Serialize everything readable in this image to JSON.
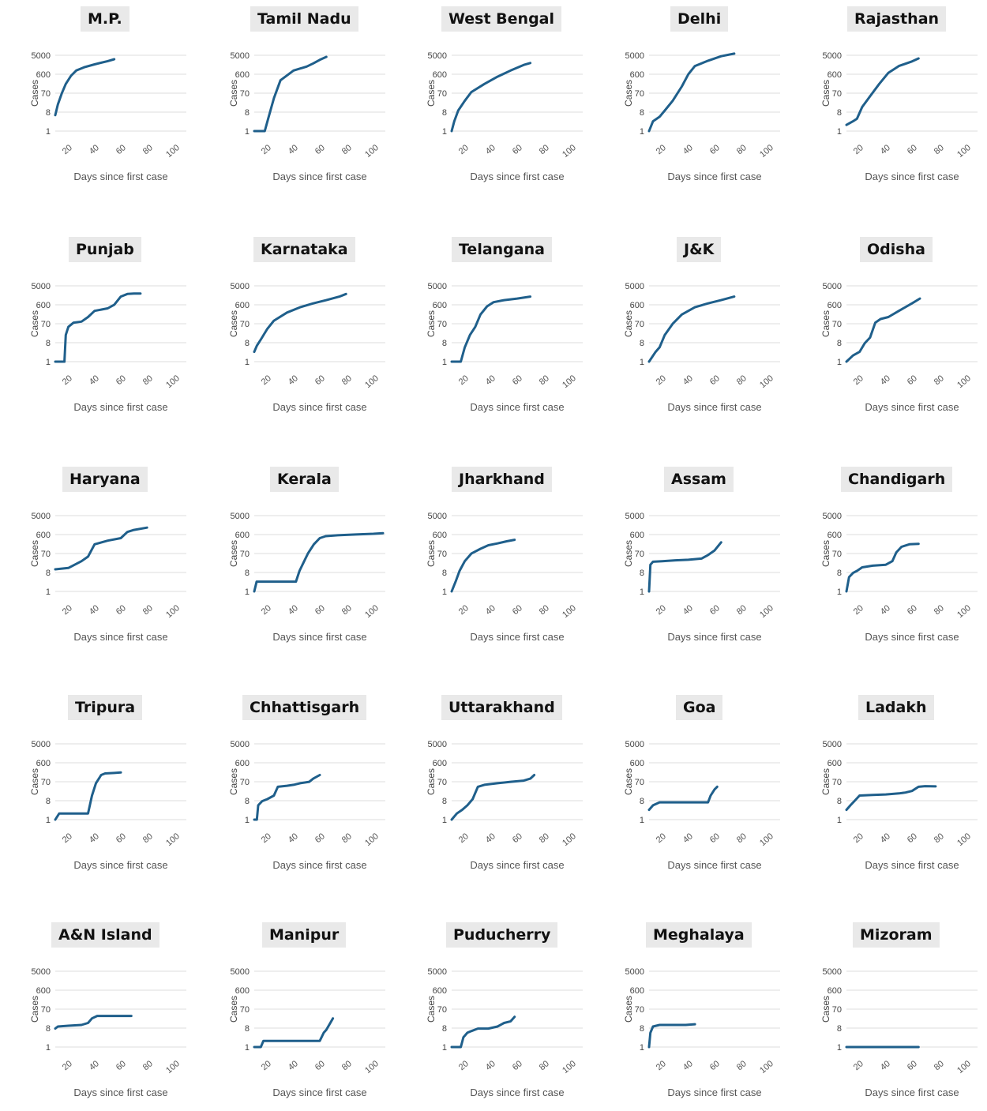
{
  "chart_data": [
    {
      "type": "line",
      "title": "M.P.",
      "xlabel": "Days since first case",
      "ylabel": "Cases",
      "yticks": [
        "1",
        "8",
        "70",
        "600",
        "5000"
      ],
      "xticks": [
        "20",
        "40",
        "60",
        "80",
        "100"
      ],
      "ylim": [
        1,
        5000
      ],
      "xlim": [
        0,
        100
      ],
      "y_scale": "log",
      "x": [
        0,
        2,
        5,
        8,
        12,
        16,
        22,
        30,
        40,
        45
      ],
      "y": [
        6,
        20,
        70,
        200,
        500,
        900,
        1300,
        1800,
        2600,
        3200
      ]
    },
    {
      "type": "line",
      "title": "Tamil Nadu",
      "xlabel": "Days since first case",
      "ylabel": "Cases",
      "yticks": [
        "1",
        "8",
        "70",
        "600",
        "5000"
      ],
      "xticks": [
        "20",
        "40",
        "60",
        "80",
        "100"
      ],
      "ylim": [
        1,
        5000
      ],
      "xlim": [
        0,
        100
      ],
      "y_scale": "log",
      "x": [
        0,
        5,
        8,
        11,
        15,
        20,
        30,
        40,
        45,
        50,
        55
      ],
      "y": [
        1,
        1,
        1,
        5,
        40,
        300,
        900,
        1400,
        2000,
        3000,
        4200
      ]
    },
    {
      "type": "line",
      "title": "West Bengal",
      "xlabel": "Days since first case",
      "ylabel": "Cases",
      "yticks": [
        "1",
        "8",
        "70",
        "600",
        "5000"
      ],
      "xticks": [
        "20",
        "40",
        "60",
        "80",
        "100"
      ],
      "ylim": [
        1,
        5000
      ],
      "xlim": [
        0,
        100
      ],
      "y_scale": "log",
      "x": [
        0,
        2,
        5,
        10,
        15,
        25,
        35,
        45,
        55,
        60
      ],
      "y": [
        1,
        3,
        10,
        30,
        80,
        200,
        450,
        900,
        1700,
        2100
      ]
    },
    {
      "type": "line",
      "title": "Delhi",
      "xlabel": "Days since first case",
      "ylabel": "Cases",
      "yticks": [
        "1",
        "8",
        "70",
        "600",
        "5000"
      ],
      "xticks": [
        "20",
        "40",
        "60",
        "80",
        "100"
      ],
      "ylim": [
        1,
        5000
      ],
      "xlim": [
        0,
        100
      ],
      "y_scale": "log",
      "x": [
        0,
        3,
        8,
        12,
        18,
        25,
        30,
        35,
        45,
        55,
        65
      ],
      "y": [
        1,
        3,
        5,
        10,
        30,
        150,
        600,
        1500,
        2700,
        4500,
        6000
      ]
    },
    {
      "type": "line",
      "title": "Rajasthan",
      "xlabel": "Days since first case",
      "ylabel": "Cases",
      "yticks": [
        "1",
        "8",
        "70",
        "600",
        "5000"
      ],
      "xticks": [
        "20",
        "40",
        "60",
        "80",
        "100"
      ],
      "ylim": [
        1,
        5000
      ],
      "xlim": [
        0,
        100
      ],
      "y_scale": "log",
      "x": [
        0,
        5,
        8,
        12,
        18,
        25,
        32,
        40,
        50,
        55
      ],
      "y": [
        2,
        3,
        4,
        15,
        50,
        200,
        700,
        1500,
        2500,
        3500
      ]
    },
    {
      "type": "line",
      "title": "Punjab",
      "xlabel": "Days since first case",
      "ylabel": "Cases",
      "yticks": [
        "1",
        "8",
        "70",
        "600",
        "5000"
      ],
      "xticks": [
        "20",
        "40",
        "60",
        "80",
        "100"
      ],
      "ylim": [
        1,
        5000
      ],
      "xlim": [
        0,
        100
      ],
      "y_scale": "log",
      "x": [
        0,
        5,
        7,
        8,
        10,
        14,
        20,
        25,
        30,
        40,
        45,
        50,
        55,
        60,
        65
      ],
      "y": [
        1,
        1,
        1,
        20,
        50,
        80,
        90,
        150,
        300,
        400,
        600,
        1500,
        2000,
        2100,
        2100
      ]
    },
    {
      "type": "line",
      "title": "Karnataka",
      "xlabel": "Days since first case",
      "ylabel": "Cases",
      "yticks": [
        "1",
        "8",
        "70",
        "600",
        "5000"
      ],
      "xticks": [
        "20",
        "40",
        "60",
        "80",
        "100"
      ],
      "ylim": [
        1,
        5000
      ],
      "xlim": [
        0,
        100
      ],
      "y_scale": "log",
      "x": [
        0,
        2,
        5,
        10,
        15,
        25,
        35,
        45,
        55,
        65,
        70
      ],
      "y": [
        3,
        6,
        12,
        40,
        100,
        250,
        450,
        700,
        1000,
        1500,
        2000
      ]
    },
    {
      "type": "line",
      "title": "Telangana",
      "xlabel": "Days since first case",
      "ylabel": "Cases",
      "yticks": [
        "1",
        "8",
        "70",
        "600",
        "5000"
      ],
      "xticks": [
        "20",
        "40",
        "60",
        "80",
        "100"
      ],
      "ylim": [
        1,
        5000
      ],
      "xlim": [
        0,
        100
      ],
      "y_scale": "log",
      "x": [
        0,
        7,
        10,
        14,
        18,
        22,
        27,
        32,
        40,
        50,
        60
      ],
      "y": [
        1,
        1,
        5,
        20,
        50,
        200,
        500,
        800,
        1000,
        1200,
        1500
      ]
    },
    {
      "type": "line",
      "title": "J&K",
      "xlabel": "Days since first case",
      "ylabel": "Cases",
      "yticks": [
        "1",
        "8",
        "70",
        "600",
        "5000"
      ],
      "xticks": [
        "20",
        "40",
        "60",
        "80",
        "100"
      ],
      "ylim": [
        1,
        5000
      ],
      "xlim": [
        0,
        100
      ],
      "y_scale": "log",
      "x": [
        0,
        5,
        8,
        12,
        18,
        25,
        35,
        45,
        55,
        65
      ],
      "y": [
        1,
        3,
        5,
        20,
        70,
        200,
        450,
        700,
        1000,
        1500
      ]
    },
    {
      "type": "line",
      "title": "Odisha",
      "xlabel": "Days since first case",
      "ylabel": "Cases",
      "yticks": [
        "1",
        "8",
        "70",
        "600",
        "5000"
      ],
      "xticks": [
        "20",
        "40",
        "60",
        "80",
        "100"
      ],
      "ylim": [
        1,
        5000
      ],
      "xlim": [
        0,
        100
      ],
      "y_scale": "log",
      "x": [
        0,
        5,
        10,
        14,
        18,
        22,
        26,
        32,
        40,
        50,
        56
      ],
      "y": [
        1,
        2,
        3,
        8,
        15,
        80,
        120,
        150,
        300,
        700,
        1200
      ]
    },
    {
      "type": "line",
      "title": "Haryana",
      "xlabel": "Days since first case",
      "ylabel": "Cases",
      "yticks": [
        "1",
        "8",
        "70",
        "600",
        "5000"
      ],
      "xticks": [
        "20",
        "40",
        "60",
        "80",
        "100"
      ],
      "ylim": [
        1,
        5000
      ],
      "xlim": [
        0,
        100
      ],
      "y_scale": "log",
      "x": [
        0,
        10,
        20,
        25,
        30,
        40,
        50,
        55,
        60,
        70
      ],
      "y": [
        12,
        14,
        30,
        50,
        200,
        300,
        400,
        800,
        1000,
        1300
      ]
    },
    {
      "type": "line",
      "title": "Kerala",
      "xlabel": "Days since first case",
      "ylabel": "Cases",
      "yticks": [
        "1",
        "8",
        "70",
        "600",
        "5000"
      ],
      "xticks": [
        "20",
        "40",
        "60",
        "80",
        "100"
      ],
      "ylim": [
        1,
        5000
      ],
      "xlim": [
        0,
        110
      ],
      "y_scale": "log",
      "x": [
        0,
        2,
        20,
        35,
        38,
        45,
        50,
        55,
        60,
        70,
        85,
        100,
        108
      ],
      "y": [
        1,
        3,
        3,
        3,
        10,
        70,
        200,
        400,
        500,
        550,
        600,
        650,
        700
      ]
    },
    {
      "type": "line",
      "title": "Jharkhand",
      "xlabel": "Days since first case",
      "ylabel": "Cases",
      "yticks": [
        "1",
        "8",
        "70",
        "600",
        "5000"
      ],
      "xticks": [
        "20",
        "40",
        "60",
        "80",
        "100"
      ],
      "ylim": [
        1,
        5000
      ],
      "xlim": [
        0,
        100
      ],
      "y_scale": "log",
      "x": [
        0,
        3,
        6,
        10,
        15,
        22,
        28,
        35,
        42,
        48
      ],
      "y": [
        1,
        3,
        10,
        30,
        70,
        120,
        180,
        220,
        280,
        330
      ]
    },
    {
      "type": "line",
      "title": "Assam",
      "xlabel": "Days since first case",
      "ylabel": "Cases",
      "yticks": [
        "1",
        "8",
        "70",
        "600",
        "5000"
      ],
      "xticks": [
        "20",
        "40",
        "60",
        "80",
        "100"
      ],
      "ylim": [
        1,
        5000
      ],
      "xlim": [
        0,
        100
      ],
      "y_scale": "log",
      "x": [
        0,
        1,
        3,
        10,
        20,
        30,
        40,
        45,
        50,
        55
      ],
      "y": [
        1,
        20,
        28,
        30,
        33,
        35,
        40,
        60,
        100,
        250
      ]
    },
    {
      "type": "line",
      "title": "Chandigarh",
      "xlabel": "Days since first case",
      "ylabel": "Cases",
      "yticks": [
        "1",
        "8",
        "70",
        "600",
        "5000"
      ],
      "xticks": [
        "20",
        "40",
        "60",
        "80",
        "100"
      ],
      "ylim": [
        1,
        5000
      ],
      "xlim": [
        0,
        100
      ],
      "y_scale": "log",
      "x": [
        0,
        2,
        5,
        8,
        12,
        20,
        30,
        35,
        38,
        42,
        48,
        55
      ],
      "y": [
        1,
        5,
        8,
        10,
        15,
        18,
        20,
        30,
        80,
        150,
        200,
        210
      ]
    },
    {
      "type": "line",
      "title": "Tripura",
      "xlabel": "Days since first case",
      "ylabel": "Cases",
      "yticks": [
        "1",
        "8",
        "70",
        "600",
        "5000"
      ],
      "xticks": [
        "20",
        "40",
        "60",
        "80",
        "100"
      ],
      "ylim": [
        1,
        5000
      ],
      "xlim": [
        0,
        100
      ],
      "y_scale": "log",
      "x": [
        0,
        3,
        25,
        28,
        31,
        35,
        38,
        45,
        50
      ],
      "y": [
        1,
        2,
        2,
        15,
        60,
        150,
        180,
        190,
        200
      ]
    },
    {
      "type": "line",
      "title": "Chhattisgarh",
      "xlabel": "Days since first case",
      "ylabel": "Cases",
      "yticks": [
        "1",
        "8",
        "70",
        "600",
        "5000"
      ],
      "xticks": [
        "20",
        "40",
        "60",
        "80",
        "100"
      ],
      "ylim": [
        1,
        5000
      ],
      "xlim": [
        0,
        100
      ],
      "y_scale": "log",
      "x": [
        0,
        2,
        3,
        6,
        10,
        15,
        18,
        25,
        30,
        35,
        42,
        45,
        50
      ],
      "y": [
        1,
        1,
        5,
        8,
        10,
        15,
        40,
        45,
        50,
        60,
        70,
        100,
        150
      ]
    },
    {
      "type": "line",
      "title": "Uttarakhand",
      "xlabel": "Days since first case",
      "ylabel": "Cases",
      "yticks": [
        "1",
        "8",
        "70",
        "600",
        "5000"
      ],
      "xticks": [
        "20",
        "40",
        "60",
        "80",
        "100"
      ],
      "ylim": [
        1,
        5000
      ],
      "xlim": [
        0,
        100
      ],
      "y_scale": "log",
      "x": [
        0,
        4,
        8,
        12,
        16,
        20,
        25,
        35,
        45,
        55,
        60,
        63
      ],
      "y": [
        1,
        2,
        3,
        5,
        10,
        40,
        50,
        60,
        70,
        80,
        100,
        150
      ]
    },
    {
      "type": "line",
      "title": "Goa",
      "xlabel": "Days since first case",
      "ylabel": "Cases",
      "yticks": [
        "1",
        "8",
        "70",
        "600",
        "5000"
      ],
      "xticks": [
        "20",
        "40",
        "60",
        "80",
        "100"
      ],
      "ylim": [
        1,
        5000
      ],
      "xlim": [
        0,
        100
      ],
      "y_scale": "log",
      "x": [
        0,
        3,
        8,
        20,
        30,
        40,
        45,
        47,
        50,
        52
      ],
      "y": [
        3,
        5,
        7,
        7,
        7,
        7,
        7,
        15,
        30,
        40
      ]
    },
    {
      "type": "line",
      "title": "Ladakh",
      "xlabel": "Days since first case",
      "ylabel": "Cases",
      "yticks": [
        "1",
        "8",
        "70",
        "600",
        "5000"
      ],
      "xticks": [
        "20",
        "40",
        "60",
        "80",
        "100"
      ],
      "ylim": [
        1,
        5000
      ],
      "xlim": [
        0,
        100
      ],
      "y_scale": "log",
      "x": [
        0,
        3,
        6,
        10,
        20,
        30,
        40,
        45,
        50,
        55,
        60,
        68
      ],
      "y": [
        3,
        5,
        8,
        15,
        16,
        17,
        19,
        21,
        25,
        40,
        43,
        42
      ]
    },
    {
      "type": "line",
      "title": "A&N Island",
      "xlabel": "Days since first case",
      "ylabel": "Cases",
      "yticks": [
        "1",
        "8",
        "70",
        "600",
        "5000"
      ],
      "xticks": [
        "20",
        "40",
        "60",
        "80",
        "100"
      ],
      "ylim": [
        1,
        5000
      ],
      "xlim": [
        0,
        100
      ],
      "y_scale": "log",
      "x": [
        0,
        2,
        10,
        20,
        25,
        28,
        32,
        40,
        50,
        58
      ],
      "y": [
        8,
        10,
        11,
        12,
        15,
        25,
        33,
        33,
        33,
        33
      ]
    },
    {
      "type": "line",
      "title": "Manipur",
      "xlabel": "Days since first case",
      "ylabel": "Cases",
      "yticks": [
        "1",
        "8",
        "70",
        "600",
        "5000"
      ],
      "xticks": [
        "20",
        "40",
        "60",
        "80",
        "100"
      ],
      "ylim": [
        1,
        5000
      ],
      "xlim": [
        0,
        100
      ],
      "y_scale": "log",
      "x": [
        0,
        5,
        7,
        20,
        40,
        50,
        53,
        55,
        58,
        60
      ],
      "y": [
        1,
        1,
        2,
        2,
        2,
        2,
        5,
        7,
        15,
        25
      ]
    },
    {
      "type": "line",
      "title": "Puducherry",
      "xlabel": "Days since first case",
      "ylabel": "Cases",
      "yticks": [
        "1",
        "8",
        "70",
        "600",
        "5000"
      ],
      "xticks": [
        "20",
        "40",
        "60",
        "80",
        "100"
      ],
      "ylim": [
        1,
        5000
      ],
      "xlim": [
        0,
        100
      ],
      "y_scale": "log",
      "x": [
        0,
        7,
        9,
        12,
        15,
        20,
        28,
        35,
        40,
        45,
        48
      ],
      "y": [
        1,
        1,
        3,
        5,
        6,
        8,
        8,
        10,
        15,
        18,
        30
      ]
    },
    {
      "type": "line",
      "title": "Meghalaya",
      "xlabel": "Days since first case",
      "ylabel": "Cases",
      "yticks": [
        "1",
        "8",
        "70",
        "600",
        "5000"
      ],
      "xticks": [
        "20",
        "40",
        "60",
        "80",
        "100"
      ],
      "ylim": [
        1,
        5000
      ],
      "xlim": [
        0,
        100
      ],
      "y_scale": "log",
      "x": [
        0,
        1,
        3,
        8,
        15,
        22,
        28,
        35
      ],
      "y": [
        1,
        5,
        10,
        12,
        12,
        12,
        12,
        13
      ]
    },
    {
      "type": "line",
      "title": "Mizoram",
      "xlabel": "Days since first case",
      "ylabel": "Cases",
      "yticks": [
        "1",
        "8",
        "70",
        "600",
        "5000"
      ],
      "xticks": [
        "20",
        "40",
        "60",
        "80",
        "100"
      ],
      "ylim": [
        1,
        5000
      ],
      "xlim": [
        0,
        100
      ],
      "y_scale": "log",
      "x": [
        0,
        55
      ],
      "y": [
        1,
        1
      ]
    }
  ],
  "colors": {
    "series": "#1f5f8b",
    "grid": "#dcdcdc",
    "title_bg": "#e9e9e9"
  }
}
